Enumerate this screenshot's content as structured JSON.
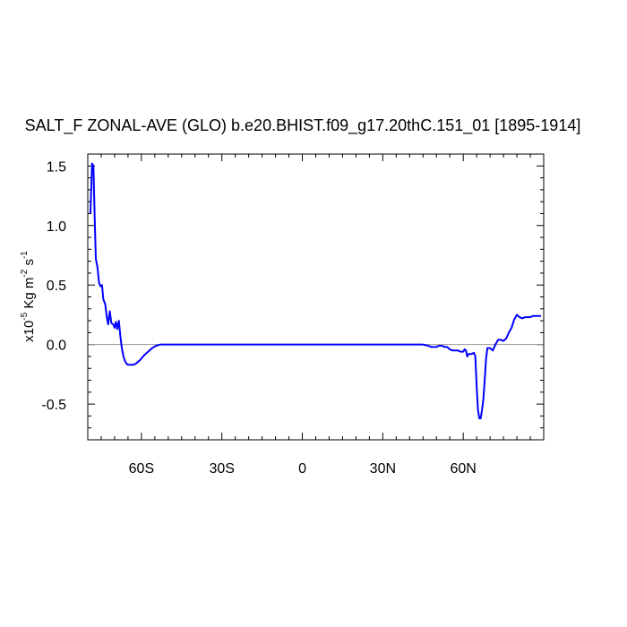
{
  "chart_data": {
    "type": "line",
    "title": "SALT_F ZONAL-AVE (GLO) b.e20.BHIST.f09_g17.20thC.151_01 [1895-1914]",
    "ylabel": {
      "prefix": "x10",
      "exp": "-5",
      "unit1": " Kg m",
      "exp2": "-2",
      "unit2": " s",
      "exp3": "-1"
    },
    "xlim": [
      -80,
      90
    ],
    "ylim": [
      -0.8,
      1.6
    ],
    "x_ticks": [
      {
        "value": -60,
        "label": "60S"
      },
      {
        "value": -30,
        "label": "30S"
      },
      {
        "value": 0,
        "label": "0"
      },
      {
        "value": 30,
        "label": "30N"
      },
      {
        "value": 60,
        "label": "60N"
      }
    ],
    "y_ticks": [
      {
        "value": 1.5,
        "label": "1.5"
      },
      {
        "value": 1.0,
        "label": "1.0"
      },
      {
        "value": 0.5,
        "label": "0.5"
      },
      {
        "value": 0.0,
        "label": "0.0"
      },
      {
        "value": -0.5,
        "label": "-0.5"
      }
    ],
    "reference_line": 0,
    "colors": {
      "series": "#0000ff",
      "reference": "#9a9a9a",
      "frame": "#000000"
    },
    "series": [
      {
        "x": [
          -79,
          -78.4,
          -77.9,
          -77.4,
          -77,
          -76.4,
          -75.8,
          -75.3,
          -74.7,
          -74.2,
          -73.5,
          -72.9,
          -72.4,
          -71.8,
          -71.2,
          -70.5,
          -70,
          -69.5,
          -69,
          -68.4,
          -67.9,
          -67.3,
          -66.7,
          -66.1,
          -65.6,
          -65,
          -64.4,
          -63.8,
          -63.2,
          -62,
          -60.5,
          -59,
          -57.5,
          -56,
          -54.5,
          -53,
          -52,
          -51,
          -50,
          -47,
          -40,
          -30,
          -20,
          -10,
          0,
          10,
          20,
          30,
          40,
          45,
          47,
          48,
          50,
          51,
          52,
          53,
          54,
          55,
          56,
          57,
          58,
          59,
          60,
          60.5,
          61,
          61.5,
          62,
          63,
          64,
          64.5,
          65,
          65.5,
          66,
          66.5,
          67,
          67.5,
          68,
          68.5,
          69,
          70,
          71,
          72,
          73,
          74,
          75,
          76,
          77,
          78,
          79,
          80,
          81,
          82,
          83,
          84,
          85,
          86,
          87,
          88,
          89
        ],
        "y": [
          1.1,
          1.52,
          1.5,
          1.05,
          0.72,
          0.65,
          0.52,
          0.49,
          0.5,
          0.38,
          0.34,
          0.23,
          0.17,
          0.28,
          0.18,
          0.17,
          0.14,
          0.19,
          0.13,
          0.2,
          0.08,
          -0.03,
          -0.1,
          -0.14,
          -0.16,
          -0.17,
          -0.17,
          -0.17,
          -0.17,
          -0.16,
          -0.13,
          -0.09,
          -0.06,
          -0.03,
          -0.01,
          0,
          0,
          0,
          0,
          0,
          0,
          0,
          0,
          0,
          0,
          0,
          0,
          0,
          0,
          0,
          -0.01,
          -0.02,
          -0.02,
          -0.01,
          -0.01,
          -0.02,
          -0.02,
          -0.04,
          -0.05,
          -0.05,
          -0.05,
          -0.06,
          -0.06,
          -0.04,
          -0.05,
          -0.1,
          -0.08,
          -0.08,
          -0.07,
          -0.1,
          -0.35,
          -0.55,
          -0.62,
          -0.62,
          -0.55,
          -0.46,
          -0.3,
          -0.12,
          -0.03,
          -0.03,
          -0.05,
          0,
          0.04,
          0.04,
          0.03,
          0.05,
          0.1,
          0.14,
          0.21,
          0.25,
          0.23,
          0.22,
          0.23,
          0.23,
          0.23,
          0.24,
          0.24,
          0.24,
          0.24
        ]
      }
    ]
  }
}
